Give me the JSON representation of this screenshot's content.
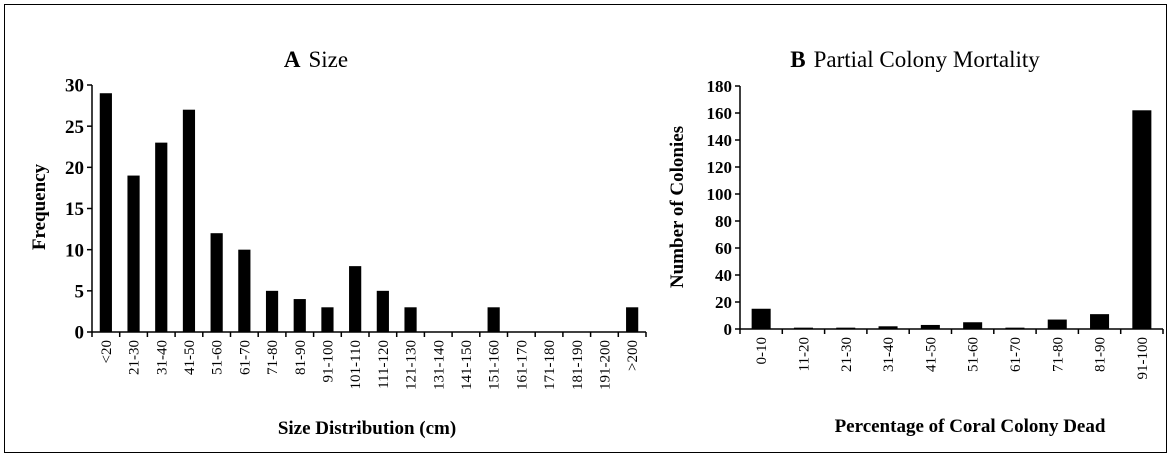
{
  "chart_data": [
    {
      "type": "bar",
      "panel_letter": "A",
      "title": "Size",
      "xlabel": "Size Distribution (cm)",
      "ylabel": "Frequency",
      "ylim": [
        0,
        30
      ],
      "yticks": [
        0,
        5,
        10,
        15,
        20,
        25,
        30
      ],
      "categories": [
        "<20",
        "21-30",
        "31-40",
        "41-50",
        "51-60",
        "61-70",
        "71-80",
        "81-90",
        "91-100",
        "101-110",
        "111-120",
        "121-130",
        "131-140",
        "141-150",
        "151-160",
        "161-170",
        "171-180",
        "181-190",
        "191-200",
        ">200"
      ],
      "values": [
        29,
        19,
        23,
        27,
        12,
        10,
        5,
        4,
        3,
        8,
        5,
        3,
        0,
        0,
        3,
        0,
        0,
        0,
        0,
        3
      ],
      "grid": false
    },
    {
      "type": "bar",
      "panel_letter": "B",
      "title": "Partial Colony Mortality",
      "xlabel": "Percentage of Coral Colony Dead",
      "ylabel": "Number of Colonies",
      "ylim": [
        0,
        180
      ],
      "yticks": [
        0,
        20,
        40,
        60,
        80,
        100,
        120,
        140,
        160,
        180
      ],
      "categories": [
        "0-10",
        "11-20",
        "21-30",
        "31-40",
        "41-50",
        "51-60",
        "61-70",
        "71-80",
        "81-90",
        "91-100"
      ],
      "values": [
        15,
        1,
        1,
        2,
        3,
        5,
        1,
        7,
        11,
        162
      ],
      "grid": false
    }
  ]
}
